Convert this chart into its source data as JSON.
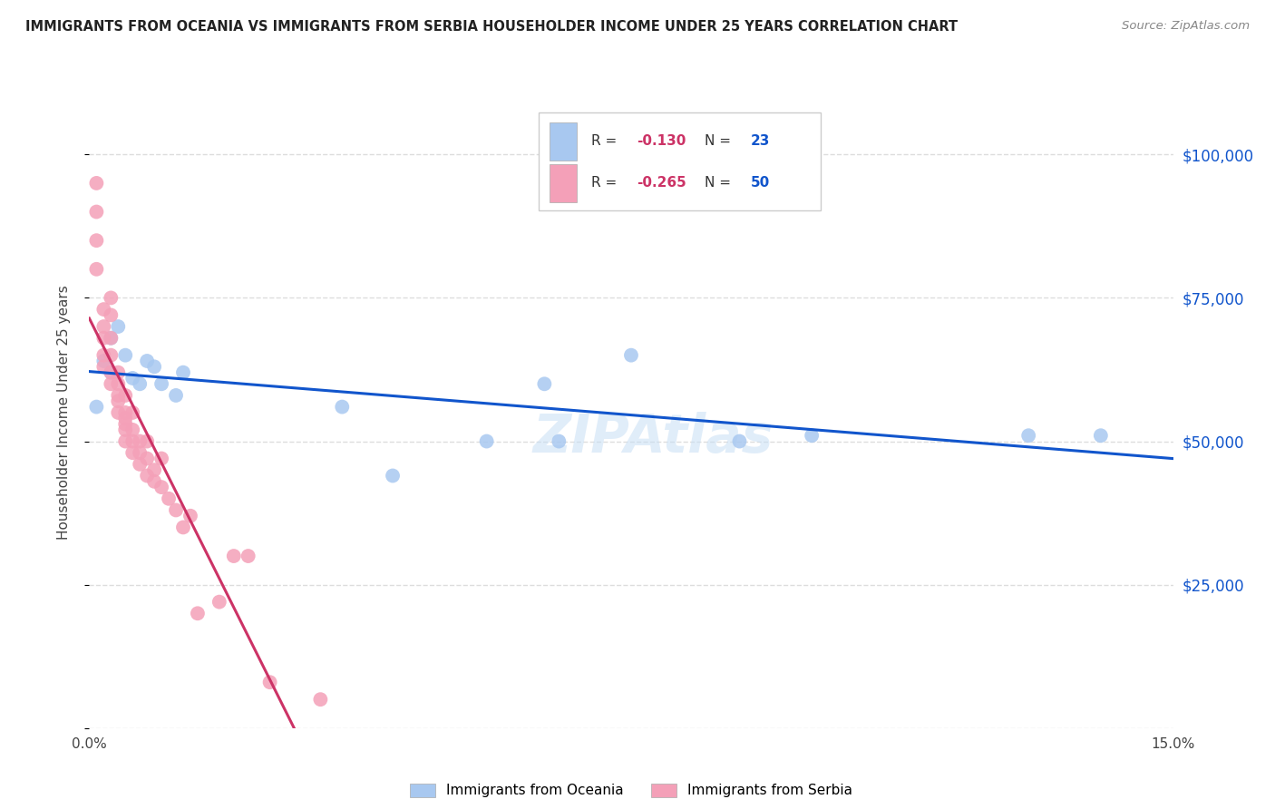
{
  "title": "IMMIGRANTS FROM OCEANIA VS IMMIGRANTS FROM SERBIA HOUSEHOLDER INCOME UNDER 25 YEARS CORRELATION CHART",
  "source": "Source: ZipAtlas.com",
  "ylabel": "Householder Income Under 25 years",
  "legend_label_1": "Immigrants from Oceania",
  "legend_label_2": "Immigrants from Serbia",
  "r1": -0.13,
  "n1": 23,
  "r2": -0.265,
  "n2": 50,
  "color1": "#a8c8f0",
  "color2": "#f4a0b8",
  "line_color1": "#1155cc",
  "line_color2": "#cc3366",
  "xlim": [
    0.0,
    0.15
  ],
  "ylim": [
    0,
    110000
  ],
  "yticks": [
    0,
    25000,
    50000,
    75000,
    100000
  ],
  "ytick_labels": [
    "",
    "$25,000",
    "$50,000",
    "$75,000",
    "$100,000"
  ],
  "xticks": [
    0.0,
    0.03,
    0.06,
    0.09,
    0.12,
    0.15
  ],
  "xtick_labels": [
    "0.0%",
    "",
    "",
    "",
    "",
    "15.0%"
  ],
  "oceania_x": [
    0.001,
    0.002,
    0.003,
    0.003,
    0.004,
    0.005,
    0.006,
    0.007,
    0.008,
    0.009,
    0.01,
    0.012,
    0.013,
    0.035,
    0.042,
    0.055,
    0.063,
    0.065,
    0.075,
    0.09,
    0.1,
    0.13,
    0.14
  ],
  "oceania_y": [
    56000,
    64000,
    62000,
    68000,
    70000,
    65000,
    61000,
    60000,
    64000,
    63000,
    60000,
    58000,
    62000,
    56000,
    44000,
    50000,
    60000,
    50000,
    65000,
    50000,
    51000,
    51000,
    51000
  ],
  "serbia_x": [
    0.001,
    0.001,
    0.001,
    0.001,
    0.002,
    0.002,
    0.002,
    0.002,
    0.002,
    0.003,
    0.003,
    0.003,
    0.003,
    0.003,
    0.003,
    0.004,
    0.004,
    0.004,
    0.004,
    0.004,
    0.005,
    0.005,
    0.005,
    0.005,
    0.005,
    0.005,
    0.006,
    0.006,
    0.006,
    0.006,
    0.007,
    0.007,
    0.007,
    0.008,
    0.008,
    0.008,
    0.009,
    0.009,
    0.01,
    0.01,
    0.011,
    0.012,
    0.013,
    0.014,
    0.015,
    0.018,
    0.02,
    0.022,
    0.025,
    0.032
  ],
  "serbia_y": [
    95000,
    90000,
    85000,
    80000,
    73000,
    70000,
    68000,
    65000,
    63000,
    75000,
    72000,
    68000,
    65000,
    62000,
    60000,
    62000,
    60000,
    58000,
    57000,
    55000,
    58000,
    55000,
    54000,
    53000,
    52000,
    50000,
    55000,
    52000,
    50000,
    48000,
    50000,
    48000,
    46000,
    50000,
    47000,
    44000,
    45000,
    43000,
    47000,
    42000,
    40000,
    38000,
    35000,
    37000,
    20000,
    22000,
    30000,
    30000,
    8000,
    5000
  ],
  "background_color": "#ffffff",
  "grid_color": "#dddddd"
}
